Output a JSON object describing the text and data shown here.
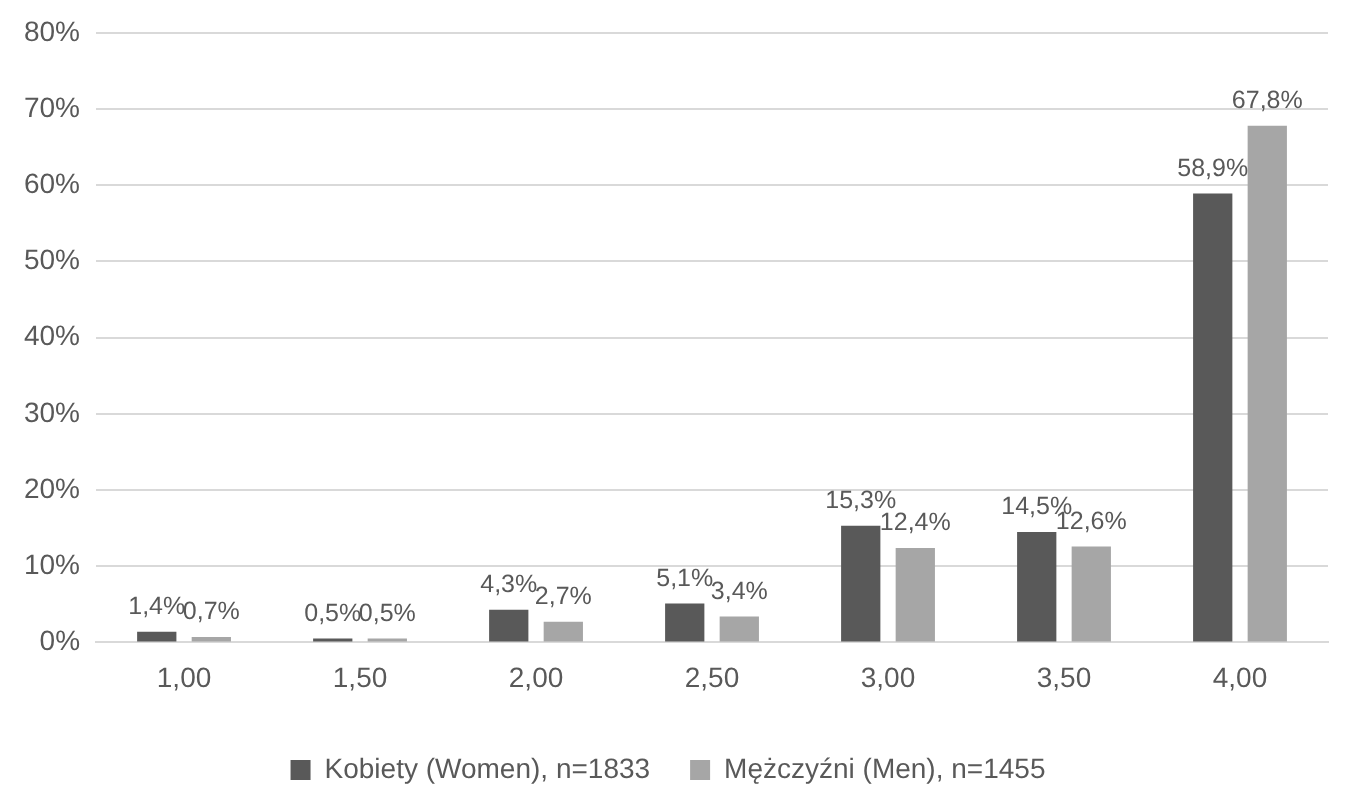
{
  "chart_data": {
    "type": "bar",
    "categories": [
      "1,00",
      "1,50",
      "2,00",
      "2,50",
      "3,00",
      "3,50",
      "4,00"
    ],
    "series": [
      {
        "name": "Kobiety (Women), n=1833",
        "color": "#595959",
        "values": [
          1.4,
          0.5,
          4.3,
          5.1,
          15.3,
          14.5,
          58.9
        ],
        "value_labels": [
          "1,4%",
          "0,5%",
          "4,3%",
          "5,1%",
          "15,3%",
          "14,5%",
          "58,9%"
        ]
      },
      {
        "name": "Mężczyźni (Men), n=1455",
        "color": "#a6a6a6",
        "values": [
          0.7,
          0.5,
          2.7,
          3.4,
          12.4,
          12.6,
          67.8
        ],
        "value_labels": [
          "0,7%",
          "0,5%",
          "2,7%",
          "3,4%",
          "12,4%",
          "12,6%",
          "67,8%"
        ]
      }
    ],
    "ylim": [
      0,
      80
    ],
    "yticks": [
      {
        "value": 0,
        "label": "0%"
      },
      {
        "value": 10,
        "label": "10%"
      },
      {
        "value": 20,
        "label": "20%"
      },
      {
        "value": 30,
        "label": "30%"
      },
      {
        "value": 40,
        "label": "40%"
      },
      {
        "value": 50,
        "label": "50%"
      },
      {
        "value": 60,
        "label": "60%"
      },
      {
        "value": 70,
        "label": "70%"
      },
      {
        "value": 80,
        "label": "80%"
      }
    ],
    "grid": "y",
    "legend": "bottom"
  }
}
